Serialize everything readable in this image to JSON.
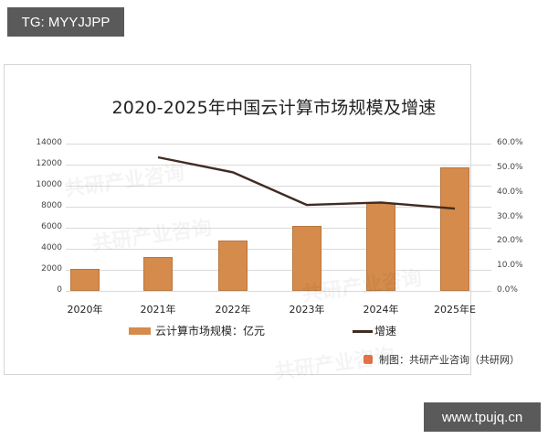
{
  "overlay": {
    "top_left_tag": "TG: MYYJJPP",
    "bottom_right_tag": "www.tpujq.cn"
  },
  "chart_data": {
    "type": "bar",
    "title": "2020-2025年中国云计算市场规模及增速",
    "categories": [
      "2020年",
      "2021年",
      "2022年",
      "2023年",
      "2024年",
      "2025年E"
    ],
    "series": [
      {
        "name": "云计算市场规模：亿元",
        "type": "bar",
        "axis": "left",
        "values": [
          2091,
          3229,
          4790,
          6165,
          8378,
          11700
        ],
        "color": "#d58b4b"
      },
      {
        "name": "增速",
        "type": "line",
        "axis": "right",
        "values": [
          null,
          54.4,
          48.3,
          35.0,
          36.0,
          33.5
        ],
        "color": "#3f2c22"
      }
    ],
    "y_left": {
      "ticks": [
        "0",
        "2000",
        "4000",
        "6000",
        "8000",
        "10000",
        "12000",
        "14000"
      ],
      "ylim": [
        0,
        14000
      ]
    },
    "y_right": {
      "ticks": [
        "0.0%",
        "10.0%",
        "20.0%",
        "30.0%",
        "40.0%",
        "50.0%",
        "60.0%"
      ],
      "ylim": [
        0,
        60
      ]
    },
    "grid": true,
    "legend_position": "bottom",
    "legend": [
      "云计算市场规模：亿元",
      "增速"
    ],
    "credit": "制图：共研产业咨询（共研网）"
  },
  "watermarks": [
    "共研产业咨询",
    "共研产业咨询",
    "共研产业咨询",
    "共研产业咨询"
  ]
}
